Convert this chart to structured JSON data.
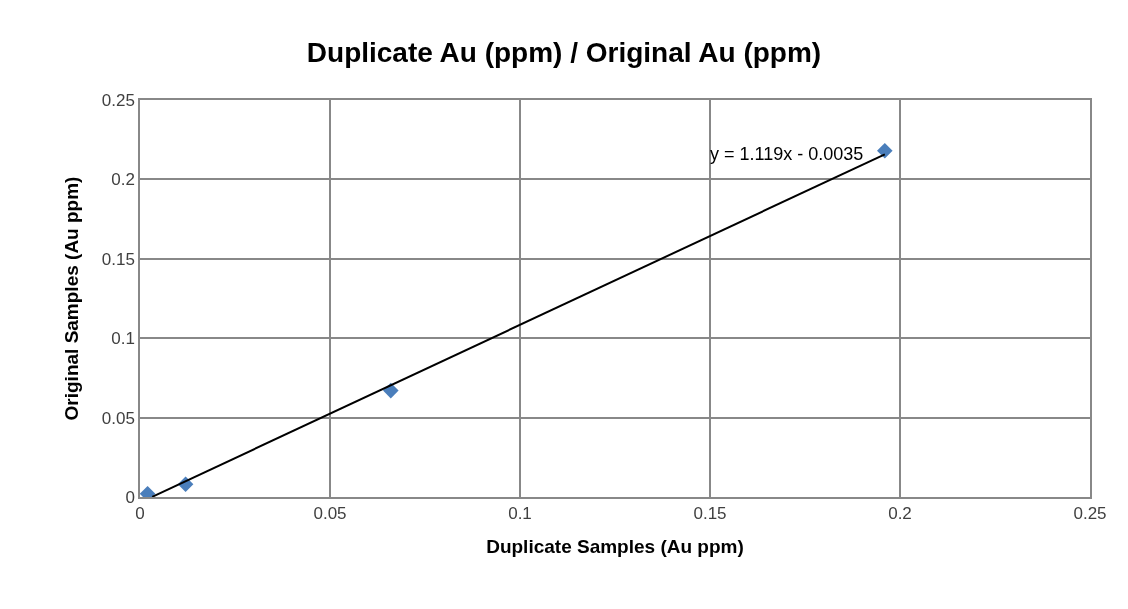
{
  "chart_data": {
    "type": "scatter",
    "title": "Duplicate Au (ppm) / Original Au (ppm)",
    "xlabel": "Duplicate Samples (Au ppm)",
    "ylabel": "Original Samples (Au ppm)",
    "xlim": [
      0,
      0.25
    ],
    "xticks": [
      0,
      0.05,
      0.1,
      0.15,
      0.2,
      0.25
    ],
    "ylim": [
      0,
      0.25
    ],
    "yticks": [
      0,
      0.05,
      0.1,
      0.15,
      0.2,
      0.25
    ],
    "grid": true,
    "marker": "diamond",
    "series": [
      {
        "color": "#4a7ebb",
        "x": [
          0.002,
          0.012,
          0.066,
          0.196
        ],
        "values": [
          0.002,
          0.008,
          0.067,
          0.218
        ]
      },
      {
        "type": "line",
        "color": "#000000",
        "line_style": "solid",
        "marker": "none",
        "x": [
          0.0032,
          0.196
        ],
        "values": [
          0.0001,
          0.2158
        ]
      }
    ],
    "annotations": [
      {
        "text": "y = 1.119x - 0.0035",
        "x": 0.196,
        "y": 0.2158
      }
    ]
  }
}
